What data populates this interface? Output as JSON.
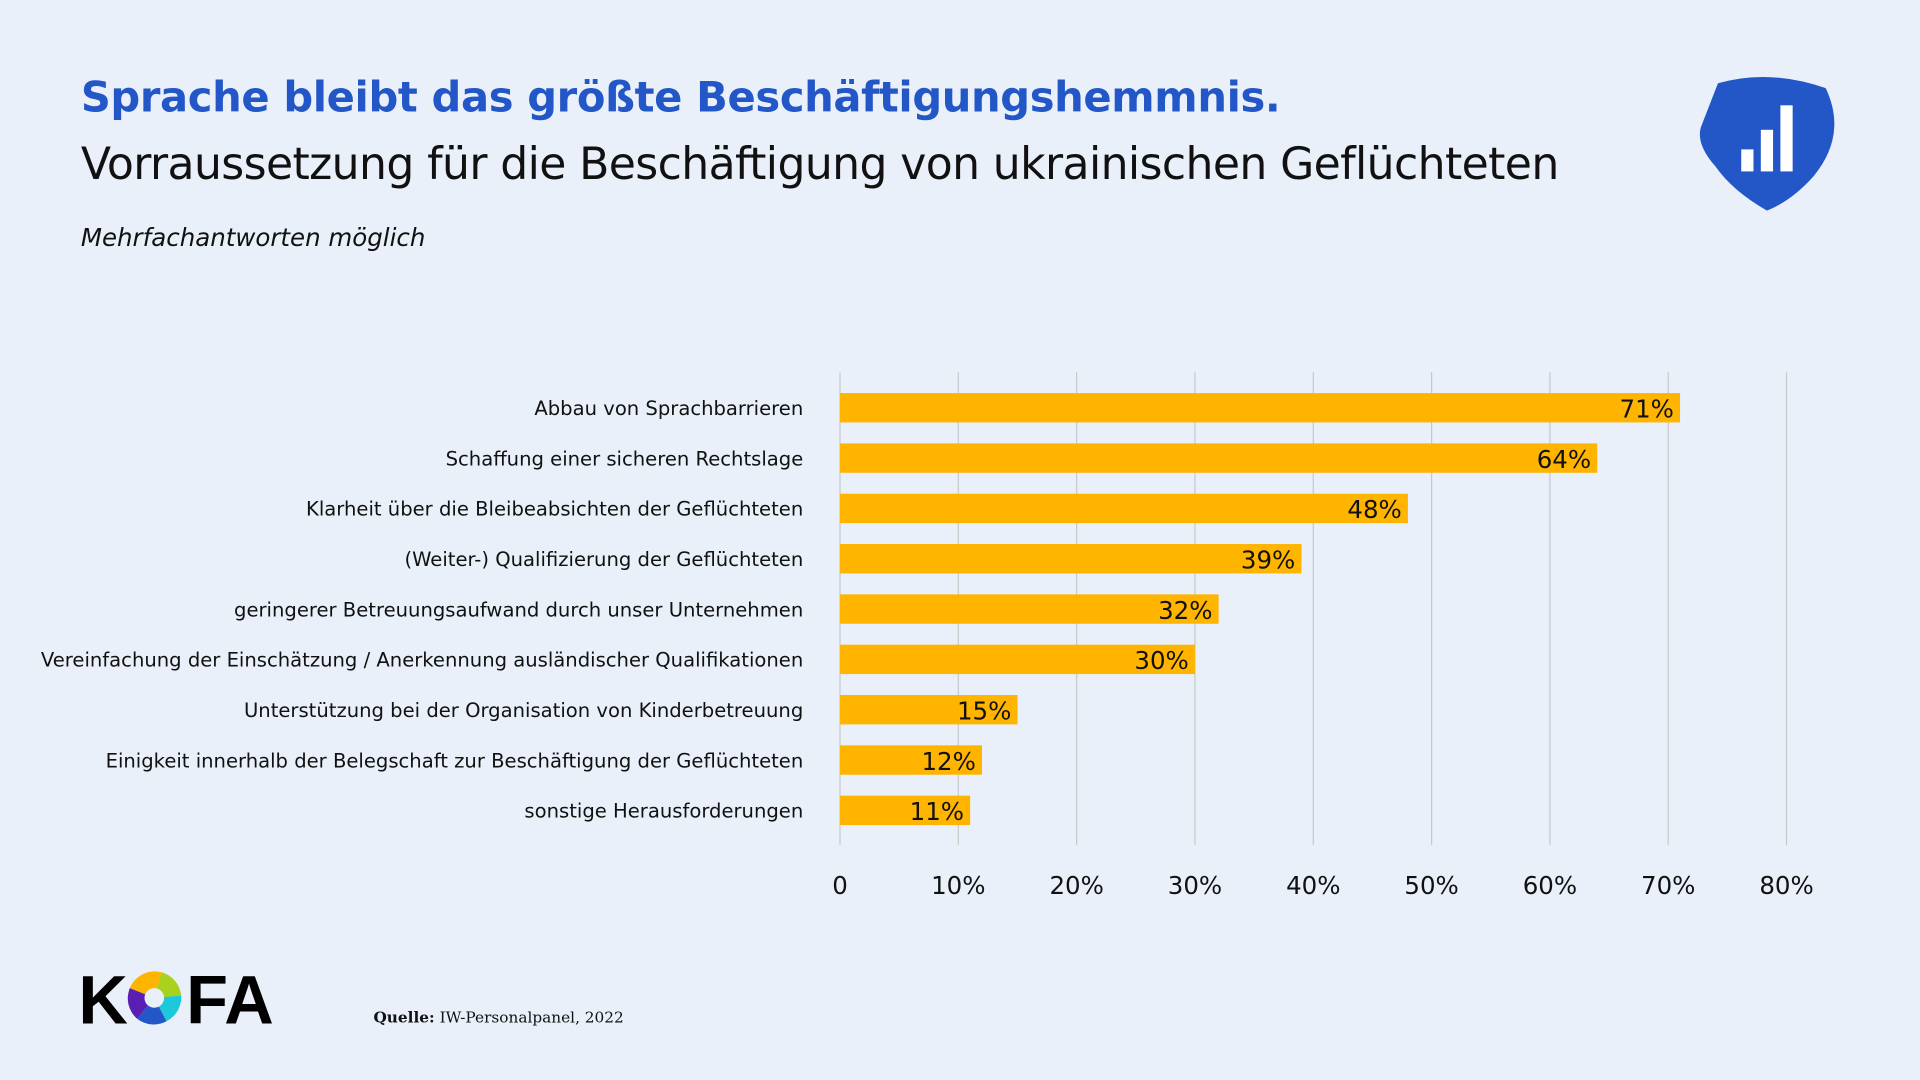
{
  "header": {
    "title": "Sprache bleibt das größte Beschäftigungshemmnis.",
    "subtitle": "Vorraussetzung für die Beschäftigung von ukrainischen Geflüchteten",
    "note": "Mehrfachantworten möglich"
  },
  "footer": {
    "source_label": "Quelle:",
    "source_text": "IW-Personalpanel, 2022",
    "logo_text": "KOFA"
  },
  "colors": {
    "background": "#e9f0fa",
    "title": "#2356c6",
    "bar": "#ffb400",
    "grid": "#c8c8c8"
  },
  "chart_data": {
    "type": "bar",
    "orientation": "horizontal",
    "categories": [
      "Abbau von Sprachbarrieren",
      "Schaffung einer sicheren Rechtslage",
      "Klarheit über die Bleibeabsichten der Geflüchteten",
      "(Weiter-) Qualifizierung der Geflüchteten",
      "geringerer Betreuungsaufwand durch unser Unternehmen",
      "Vereinfachung der Einschätzung / Anerkennung ausländischer Qualifikationen",
      "Unterstützung bei der Organisation von Kinderbetreuung",
      "Einigkeit innerhalb der Belegschaft zur Beschäftigung der Geflüchteten",
      "sonstige Herausforderungen"
    ],
    "values": [
      71,
      64,
      48,
      39,
      32,
      30,
      15,
      12,
      11
    ],
    "data_labels": [
      "71%",
      "64%",
      "48%",
      "39%",
      "32%",
      "30%",
      "15%",
      "12%",
      "11%"
    ],
    "xlim": [
      0,
      80
    ],
    "x_ticks": [
      0,
      10,
      20,
      30,
      40,
      50,
      60,
      70,
      80
    ],
    "x_tick_labels": [
      "0",
      "10%",
      "20%",
      "30%",
      "40%",
      "50%",
      "60%",
      "70%",
      "80%"
    ],
    "grid": "vertical",
    "legend": "none"
  }
}
